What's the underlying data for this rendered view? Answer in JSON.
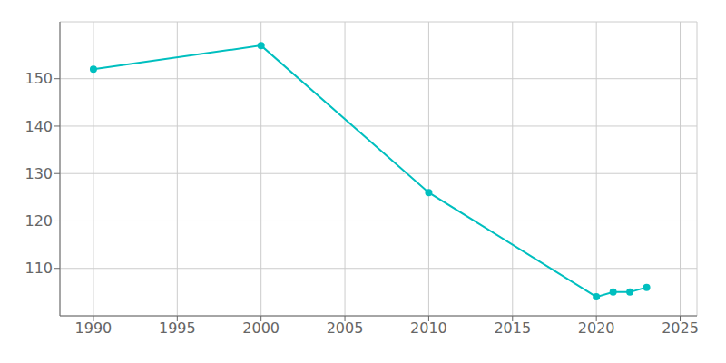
{
  "chart_data": {
    "type": "line",
    "x": [
      1990,
      2000,
      2010,
      2020,
      2021,
      2022,
      2023
    ],
    "values": [
      152,
      157,
      126,
      104,
      105,
      105,
      106
    ],
    "color": "#00BFBF",
    "marker": "circle",
    "xlim": [
      1988,
      2026
    ],
    "ylim": [
      100,
      162
    ],
    "xticks": [
      1990,
      1995,
      2000,
      2005,
      2010,
      2015,
      2020,
      2025
    ],
    "yticks": [
      110,
      120,
      130,
      140,
      150
    ],
    "grid": true
  }
}
